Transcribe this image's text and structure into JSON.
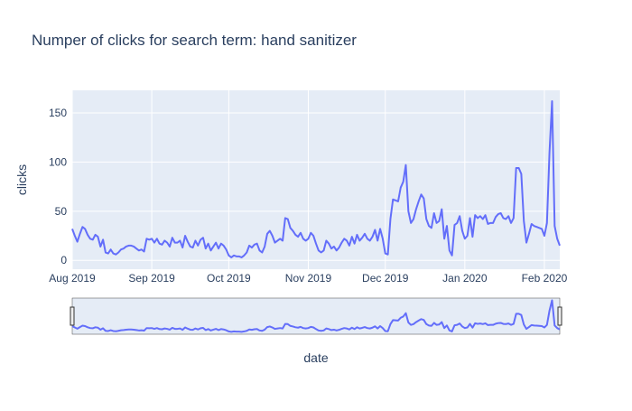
{
  "chart_data": {
    "type": "line",
    "title": "Numper of clicks for search term: hand sanitizer",
    "x_label": "date",
    "y_label": "clicks",
    "series": [
      {
        "color": "#636efa",
        "values": [
          32,
          25,
          19,
          27,
          34,
          32,
          26,
          22,
          21,
          26,
          24,
          14,
          21,
          8,
          7,
          11,
          7,
          6,
          8,
          11,
          12,
          14,
          15,
          15,
          14,
          12,
          10,
          11,
          9,
          22,
          21,
          22,
          18,
          22,
          17,
          16,
          20,
          18,
          14,
          23,
          18,
          18,
          20,
          13,
          25,
          19,
          14,
          13,
          20,
          15,
          21,
          23,
          12,
          17,
          10,
          14,
          18,
          12,
          17,
          15,
          11,
          5,
          3,
          5,
          4,
          4,
          3,
          5,
          8,
          15,
          13,
          16,
          17,
          10,
          8,
          14,
          27,
          30,
          25,
          18,
          20,
          22,
          20,
          43,
          42,
          33,
          30,
          26,
          24,
          28,
          22,
          20,
          22,
          28,
          25,
          17,
          10,
          8,
          10,
          20,
          17,
          12,
          14,
          10,
          13,
          18,
          22,
          20,
          15,
          24,
          17,
          26,
          20,
          23,
          27,
          22,
          20,
          24,
          31,
          20,
          32,
          22,
          7,
          6,
          42,
          62,
          61,
          60,
          74,
          80,
          97,
          50,
          38,
          42,
          52,
          60,
          67,
          63,
          42,
          35,
          33,
          48,
          38,
          40,
          52,
          22,
          35,
          10,
          5,
          36,
          38,
          45,
          30,
          22,
          25,
          43,
          24,
          46,
          43,
          45,
          42,
          46,
          37,
          38,
          38,
          44,
          47,
          48,
          43,
          42,
          45,
          38,
          43,
          94,
          94,
          88,
          40,
          18,
          27,
          37,
          35,
          34,
          33,
          32,
          25,
          38,
          110,
          162,
          35,
          22,
          15
        ]
      }
    ],
    "xlim": [
      0,
      190
    ],
    "xticks": [
      {
        "value": 0,
        "label": "Aug 2019"
      },
      {
        "value": 31,
        "label": "Sep 2019"
      },
      {
        "value": 61,
        "label": "Oct 2019"
      },
      {
        "value": 92,
        "label": "Nov 2019"
      },
      {
        "value": 122,
        "label": "Dec 2019"
      },
      {
        "value": 153,
        "label": "Jan 2020"
      },
      {
        "value": 184,
        "label": "Feb 2020"
      }
    ],
    "ylim": [
      -9,
      173
    ],
    "yticks": [
      0,
      50,
      100,
      150
    ],
    "grid": true,
    "range_slider": true
  }
}
